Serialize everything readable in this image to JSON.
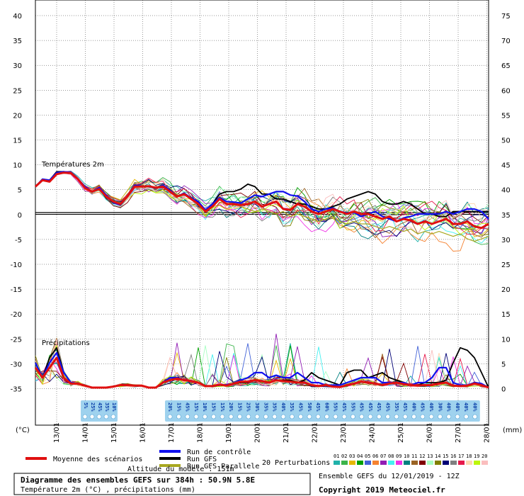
{
  "chart_data": {
    "type": "line",
    "y_left_ticks": [
      "40",
      "35",
      "30",
      "25",
      "20",
      "15",
      "10",
      "5",
      "0",
      "-5",
      "-10",
      "-15",
      "-20",
      "-25",
      "-30",
      "-35"
    ],
    "y_right_ticks": [
      "75",
      "70",
      "65",
      "60",
      "55",
      "50",
      "45",
      "40",
      "35",
      "30",
      "25",
      "20",
      "15",
      "10",
      "5",
      "0"
    ],
    "y_left_unit": "(°C)",
    "y_right_unit": "(mm)",
    "x_ticks": [
      "13/01",
      "14/01",
      "15/01",
      "16/01",
      "17/01",
      "18/01",
      "19/01",
      "20/01",
      "21/01",
      "22/01",
      "23/01",
      "24/01",
      "25/01",
      "26/01",
      "27/01",
      "28/01"
    ],
    "temp_label": "Températures 2m",
    "precip_label": "Précipitations",
    "ylim_temp": [
      -35,
      40
    ],
    "ylim_precip_mm": [
      0,
      75
    ],
    "temperature": {
      "mean": [
        5.5,
        6.8,
        6.5,
        8,
        8.3,
        8.2,
        7,
        5.2,
        4.5,
        5,
        3.5,
        2.5,
        2,
        3.5,
        5.5,
        5.5,
        5.6,
        5.3,
        5.5,
        4.5,
        3.5,
        4,
        3,
        2,
        0.5,
        1.5,
        3,
        2,
        2,
        1.8,
        2,
        2.5,
        1.5,
        2,
        2.5,
        1,
        0.8,
        2,
        1.5,
        0.5,
        0,
        0.5,
        1,
        0.5,
        0,
        0.5,
        0,
        0,
        -0.5,
        -1,
        -0.5,
        -1.5,
        -1,
        -1.3,
        -2,
        -1.5,
        -2,
        -1.5,
        -1,
        -2,
        -2,
        -1.5,
        -2.5,
        -2.8,
        -2
      ],
      "control": [
        5.5,
        7,
        6.8,
        8.3,
        8.5,
        8.3,
        7,
        5.5,
        4.5,
        5.3,
        3.8,
        2.3,
        1.8,
        3.5,
        5.8,
        5.6,
        5.5,
        5.2,
        5.8,
        4.8,
        3.5,
        4.2,
        3.2,
        2.5,
        0.8,
        2,
        3.3,
        2.5,
        2.4,
        2.2,
        3,
        3.8,
        3.5,
        4,
        4.5,
        4.5,
        3.8,
        3.6,
        2.5,
        1,
        0.5,
        1,
        1.2,
        0.5,
        0.2,
        0.3,
        -0.5,
        0,
        0.5,
        -0.5,
        -1,
        -1.5,
        -0.8,
        -0.5,
        0,
        0,
        0,
        0,
        0.5,
        0,
        0.5,
        1,
        1,
        0.5,
        -1
      ],
      "gfs": [
        5.5,
        7,
        6.8,
        8.5,
        8.5,
        8.2,
        7,
        5.3,
        4.5,
        5.3,
        3.5,
        2.2,
        2,
        3.5,
        5.8,
        5.5,
        5.5,
        5.2,
        5.8,
        4.8,
        3.5,
        4,
        3,
        2.2,
        0.8,
        2,
        4,
        4.5,
        4.5,
        5,
        6,
        5.5,
        4,
        4,
        3,
        3,
        2.5,
        2,
        2,
        1.5,
        1,
        1,
        1.5,
        2,
        3,
        3.5,
        4,
        4.5,
        4,
        2.5,
        2,
        2,
        2.5,
        2,
        1,
        0,
        0,
        -0.5,
        -0.5,
        0.5,
        0.5,
        0.5,
        0.5,
        0.5,
        0.5
      ],
      "parallel": [
        5.5,
        7,
        6.8,
        8.5,
        8.5,
        8.2,
        7,
        5.3,
        4.5,
        5.3,
        3.5,
        2.2,
        2,
        3.5,
        5.8,
        5.5,
        5.5,
        5.2,
        5.8,
        4.8,
        3.5,
        4,
        3,
        2.2,
        0.8,
        2,
        3.5,
        2.5,
        2,
        1.5,
        1,
        0.5,
        1,
        0.5,
        0,
        0.5,
        -0.5,
        0,
        -0.5,
        -1,
        -1.5,
        -1,
        -0.5,
        -1.5,
        -2,
        -1.5,
        -2,
        -2,
        -2.5,
        -3,
        -2.5,
        -3,
        -3.5,
        -3,
        -4,
        -3.5,
        -4,
        -3.5,
        -4,
        -4.5,
        -4,
        -5,
        -5.5,
        -5,
        -4.5
      ],
      "members": 20
    },
    "precipitation_mm": {
      "mean": [
        4,
        2,
        4,
        6,
        2,
        0.8,
        0.8,
        0.4,
        0,
        0,
        0,
        0.2,
        0.5,
        0.5,
        0.4,
        0.4,
        0,
        0,
        1,
        1.5,
        1.8,
        1.5,
        1.3,
        1,
        0.3,
        0.3,
        0.6,
        0.4,
        0.8,
        1.2,
        1.2,
        1.5,
        1.3,
        1,
        1.5,
        1.3,
        1.2,
        1,
        1,
        0.5,
        0.3,
        0.5,
        0.2,
        0.1,
        0.5,
        0.8,
        1.2,
        1,
        0.8,
        0.5,
        0.8,
        1,
        0.7,
        0.5,
        0.4,
        0.5,
        0.5,
        0.8,
        1,
        0.4,
        0.3,
        0.4,
        0.8,
        0.5,
        0
      ],
      "control": [
        5,
        2,
        5,
        7,
        3,
        1,
        0.8,
        0.4,
        0,
        0,
        0,
        0.2,
        0.5,
        0.5,
        0.4,
        0.4,
        0,
        0,
        1,
        2,
        2,
        1.5,
        1.4,
        1,
        0.3,
        0.3,
        0.5,
        0.6,
        0.8,
        1.5,
        2,
        3,
        3,
        2,
        2.5,
        2,
        2,
        3,
        2,
        1,
        1,
        0.5,
        0.5,
        0.5,
        1,
        1.5,
        2,
        2,
        2,
        1,
        1,
        1,
        1,
        0.5,
        1,
        1,
        2,
        4,
        4,
        1,
        0.5,
        0.5,
        1,
        0.8,
        0
      ],
      "gfs": [
        5,
        2,
        6,
        8,
        3,
        1,
        0.8,
        0.4,
        0,
        0,
        0,
        0.2,
        0.5,
        0.5,
        0.4,
        0.4,
        0,
        0,
        1,
        1.5,
        2,
        1.5,
        1.3,
        1,
        0.3,
        0.3,
        0.5,
        0.4,
        0.8,
        1,
        1,
        1.5,
        1.2,
        1,
        1.5,
        1.5,
        1.5,
        1,
        1.5,
        3,
        2,
        1.5,
        1,
        0.5,
        3,
        3.5,
        3.5,
        2,
        2.5,
        3,
        2,
        1.5,
        1,
        0.5,
        0.5,
        1,
        1,
        1,
        1.5,
        5,
        8,
        7.5,
        6,
        3,
        0
      ]
    },
    "percentiles_run1": [
      "5%",
      "25%",
      "45%",
      "35%",
      "10%"
    ],
    "percentiles_run2": [
      "20%",
      "15%",
      "45%",
      "15%",
      "10%",
      "15%",
      "15%",
      "20%",
      "15%",
      "25%",
      "30%",
      "35%",
      "35%",
      "40%",
      "35%",
      "45%",
      "50%",
      "45%",
      "60%",
      "55%",
      "45%",
      "55%",
      "45%",
      "45%",
      "45%",
      "45%",
      "35%",
      "45%",
      "40%",
      "45%",
      "40%",
      "30%",
      "40%",
      "40%",
      "40%",
      "40%"
    ]
  },
  "legend": {
    "mean_label": "Moyenne des scénarios",
    "control_label": "Run de contrôle",
    "gfs_label": "Run GFS",
    "parallel_label": "Run GFS Parallele",
    "perturbations_label": "20 Perturbations",
    "altitude_label": "Altitude du modele : 151m",
    "member_numbers": [
      "01",
      "02",
      "03",
      "04",
      "05",
      "06",
      "07",
      "08",
      "09",
      "10",
      "11",
      "12",
      "13",
      "14",
      "15",
      "16",
      "17",
      "18",
      "19",
      "20"
    ]
  },
  "footer": {
    "title": "Diagramme des ensembles GEFS sur 384h : 50.9N 5.8E",
    "subtitle": "Température 2m (°C) , précipitations (mm)",
    "run": "Ensemble GEFS du 12/01/2019 - 12Z",
    "copyright": "Copyright 2019 Meteociel.fr"
  },
  "colors": {
    "mean": "#e01010",
    "control": "#1010ee",
    "gfs": "#000000",
    "parallel": "#a8a820",
    "grid": "#000000",
    "snow": "#9fd2ee",
    "members": [
      "#20b2aa",
      "#3cb44b",
      "#e6b800",
      "#00a000",
      "#4363d8",
      "#f58231",
      "#911eb4",
      "#46f0f0",
      "#f032e6",
      "#008080",
      "#9a6324",
      "#800000",
      "#aaffc3",
      "#808000",
      "#000075",
      "#808080",
      "#e6194b",
      "#ffd8b1",
      "#bcf60c",
      "#fabebe"
    ]
  }
}
